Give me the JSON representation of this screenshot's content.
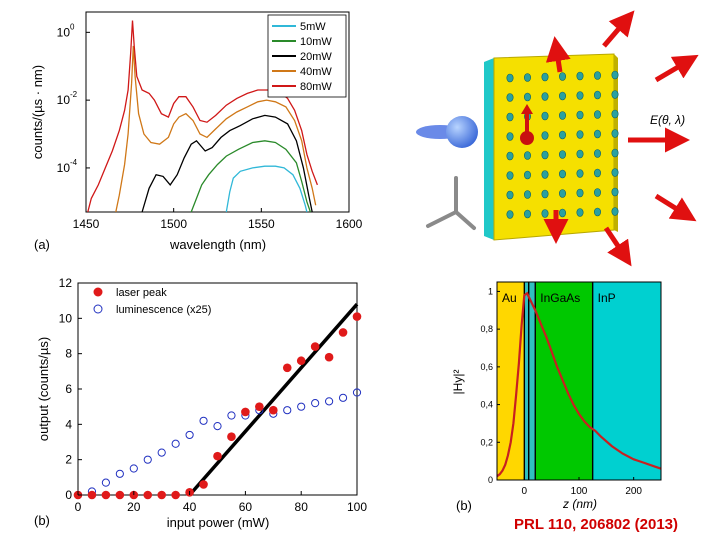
{
  "citation": "PRL 110, 206802 (2013)",
  "colors": {
    "accent_red": "#d00000",
    "au": "#ffd700",
    "ingaas": "#00c800",
    "inp": "#00d0d0",
    "slab": "#f5e000"
  },
  "panel_a": {
    "label": "(a)",
    "chart_data": {
      "type": "line",
      "xlabel": "wavelength (nm)",
      "ylabel": "counts/(µs · nm)",
      "xlim": [
        1450,
        1600
      ],
      "ylim_log10": [
        -5.3,
        0.6
      ],
      "xticks": [
        "1450",
        "1500",
        "1550",
        "1600"
      ],
      "yticks": [
        {
          "exp": 0,
          "label": "10"
        },
        {
          "exp": -2,
          "label": "10"
        },
        {
          "exp": -4,
          "label": "10"
        }
      ],
      "ytick_exponents": [
        "0",
        "-2",
        "-4"
      ],
      "legend": [
        {
          "name": "5mW",
          "color": "#30b8d8"
        },
        {
          "name": "10mW",
          "color": "#2a8a2a"
        },
        {
          "name": "20mW",
          "color": "#000000"
        },
        {
          "name": "40mW",
          "color": "#d07818"
        },
        {
          "name": "80mW",
          "color": "#d01818"
        }
      ],
      "series": [
        {
          "name": "5mW",
          "points": [
            [
              1530,
              -5.3
            ],
            [
              1532,
              -4.7
            ],
            [
              1534,
              -4.3
            ],
            [
              1538,
              -4.1
            ],
            [
              1545,
              -4.0
            ],
            [
              1552,
              -3.95
            ],
            [
              1558,
              -3.95
            ],
            [
              1563,
              -4.0
            ],
            [
              1568,
              -4.2
            ],
            [
              1572,
              -4.6
            ],
            [
              1575,
              -5.1
            ],
            [
              1576,
              -5.3
            ]
          ]
        },
        {
          "name": "10mW",
          "points": [
            [
              1510,
              -5.3
            ],
            [
              1513,
              -4.9
            ],
            [
              1516,
              -4.5
            ],
            [
              1520,
              -4.2
            ],
            [
              1525,
              -3.9
            ],
            [
              1530,
              -3.65
            ],
            [
              1537,
              -3.45
            ],
            [
              1545,
              -3.25
            ],
            [
              1552,
              -3.2
            ],
            [
              1558,
              -3.25
            ],
            [
              1564,
              -3.45
            ],
            [
              1570,
              -3.85
            ],
            [
              1573,
              -4.4
            ],
            [
              1576,
              -5.0
            ],
            [
              1578,
              -5.3
            ]
          ]
        },
        {
          "name": "20mW",
          "points": [
            [
              1482,
              -5.3
            ],
            [
              1486,
              -4.6
            ],
            [
              1490,
              -4.2
            ],
            [
              1494,
              -4.25
            ],
            [
              1498,
              -4.5
            ],
            [
              1502,
              -4.2
            ],
            [
              1506,
              -3.7
            ],
            [
              1510,
              -3.3
            ],
            [
              1513,
              -3.2
            ],
            [
              1518,
              -3.5
            ],
            [
              1522,
              -3.4
            ],
            [
              1527,
              -3.1
            ],
            [
              1532,
              -2.9
            ],
            [
              1538,
              -2.75
            ],
            [
              1545,
              -2.55
            ],
            [
              1552,
              -2.45
            ],
            [
              1558,
              -2.5
            ],
            [
              1565,
              -2.7
            ],
            [
              1570,
              -3.2
            ],
            [
              1574,
              -4.0
            ],
            [
              1577,
              -4.8
            ],
            [
              1579,
              -5.3
            ]
          ]
        },
        {
          "name": "40mW",
          "points": [
            [
              1467,
              -5.3
            ],
            [
              1469,
              -4.8
            ],
            [
              1472,
              -3.9
            ],
            [
              1474,
              -3.0
            ],
            [
              1476,
              -1.5
            ],
            [
              1477,
              -0.4
            ],
            [
              1478,
              -1.3
            ],
            [
              1480,
              -2.4
            ],
            [
              1483,
              -3.0
            ],
            [
              1487,
              -3.25
            ],
            [
              1492,
              -3.3
            ],
            [
              1497,
              -3.1
            ],
            [
              1500,
              -2.7
            ],
            [
              1503,
              -2.5
            ],
            [
              1507,
              -2.4
            ],
            [
              1511,
              -2.6
            ],
            [
              1515,
              -3.0
            ],
            [
              1519,
              -3.1
            ],
            [
              1524,
              -2.85
            ],
            [
              1530,
              -2.55
            ],
            [
              1536,
              -2.35
            ],
            [
              1542,
              -2.2
            ],
            [
              1548,
              -2.05
            ],
            [
              1553,
              -2.0
            ],
            [
              1558,
              -2.05
            ],
            [
              1564,
              -2.2
            ],
            [
              1569,
              -2.6
            ],
            [
              1573,
              -3.2
            ],
            [
              1576,
              -4.0
            ],
            [
              1579,
              -4.6
            ],
            [
              1581,
              -5.1
            ]
          ]
        },
        {
          "name": "80mW",
          "points": [
            [
              1451,
              -5.3
            ],
            [
              1453,
              -4.9
            ],
            [
              1457,
              -4.5
            ],
            [
              1461,
              -4.0
            ],
            [
              1465,
              -3.5
            ],
            [
              1469,
              -2.9
            ],
            [
              1472,
              -2.3
            ],
            [
              1474,
              -1.7
            ],
            [
              1475.5,
              -0.6
            ],
            [
              1476.5,
              0.35
            ],
            [
              1477.5,
              -0.4
            ],
            [
              1479,
              -1.3
            ],
            [
              1482,
              -1.7
            ],
            [
              1486,
              -1.8
            ],
            [
              1489,
              -2.0
            ],
            [
              1493,
              -2.4
            ],
            [
              1497,
              -2.5
            ],
            [
              1500,
              -2.1
            ],
            [
              1503,
              -1.9
            ],
            [
              1507,
              -1.9
            ],
            [
              1511,
              -2.2
            ],
            [
              1515,
              -2.6
            ],
            [
              1519,
              -2.65
            ],
            [
              1524,
              -2.45
            ],
            [
              1530,
              -2.15
            ],
            [
              1536,
              -1.95
            ],
            [
              1542,
              -1.8
            ],
            [
              1548,
              -1.7
            ],
            [
              1554,
              -1.7
            ],
            [
              1560,
              -1.75
            ],
            [
              1565,
              -1.95
            ],
            [
              1569,
              -2.3
            ],
            [
              1573,
              -2.9
            ],
            [
              1576,
              -3.6
            ],
            [
              1579,
              -4.1
            ],
            [
              1582,
              -4.5
            ]
          ]
        }
      ]
    }
  },
  "panel_b": {
    "label": "(b)",
    "chart_data": {
      "type": "scatter",
      "xlabel": "input power (mW)",
      "ylabel": "output (counts/µs)",
      "xlim": [
        0,
        100
      ],
      "ylim": [
        0,
        12
      ],
      "xticks": [
        "0",
        "20",
        "40",
        "60",
        "80",
        "100"
      ],
      "yticks": [
        "0",
        "2",
        "4",
        "6",
        "8",
        "10",
        "12"
      ],
      "legend": [
        {
          "name": "laser peak",
          "style": "filled-red-dot"
        },
        {
          "name": "luminescence (x25)",
          "style": "open-blue-circle"
        }
      ],
      "series": [
        {
          "name": "laser peak",
          "x": [
            0,
            5,
            10,
            15,
            20,
            25,
            30,
            35,
            40,
            45,
            50,
            55,
            60,
            65,
            70,
            75,
            80,
            85,
            90,
            95,
            100
          ],
          "y": [
            0,
            0,
            0,
            0,
            0,
            0,
            0,
            0,
            0.15,
            0.6,
            2.2,
            3.3,
            4.7,
            5.0,
            4.8,
            7.2,
            7.6,
            8.4,
            7.8,
            9.2,
            10.1
          ]
        },
        {
          "name": "luminescence (x25)",
          "x": [
            0,
            5,
            10,
            15,
            20,
            25,
            30,
            35,
            40,
            45,
            50,
            55,
            60,
            65,
            70,
            75,
            80,
            85,
            90,
            95,
            100
          ],
          "y": [
            0,
            0.2,
            0.7,
            1.2,
            1.5,
            2.0,
            2.4,
            2.9,
            3.4,
            4.2,
            3.9,
            4.5,
            4.5,
            4.8,
            4.6,
            4.8,
            5.0,
            5.2,
            5.3,
            5.5,
            5.8
          ]
        },
        {
          "name": "threshold fit",
          "type": "line",
          "x": [
            40,
            100
          ],
          "y": [
            0,
            10.8
          ]
        }
      ]
    }
  },
  "panel_c": {
    "equation_label": "E(θ, λ)"
  },
  "panel_d": {
    "label": "(b)",
    "chart_data": {
      "type": "line",
      "xlabel": "z (nm)",
      "ylabel": "|Hy|²",
      "xlim": [
        -50,
        250
      ],
      "ylim": [
        0,
        1.05
      ],
      "xticks": [
        "0",
        "100",
        "200"
      ],
      "yticks": [
        "0",
        "0,2",
        "0,4",
        "0,6",
        "0,8",
        "1"
      ],
      "regions": [
        {
          "name": "Au",
          "from": -50,
          "to": 0
        },
        {
          "name": "InGaAs",
          "from": 20,
          "to": 125
        },
        {
          "name": "InP",
          "from": 125,
          "to": 250
        }
      ],
      "series": [
        {
          "name": "|Hy|^2",
          "x": [
            -50,
            -45,
            -40,
            -35,
            -30,
            -25,
            -20,
            -15,
            -10,
            -5,
            0,
            5,
            10,
            20,
            30,
            40,
            50,
            60,
            70,
            80,
            90,
            100,
            110,
            120,
            130,
            140,
            160,
            180,
            200,
            220,
            240,
            250
          ],
          "y": [
            0.02,
            0.03,
            0.05,
            0.08,
            0.13,
            0.2,
            0.3,
            0.45,
            0.62,
            0.82,
            0.98,
            0.99,
            0.96,
            0.9,
            0.83,
            0.76,
            0.68,
            0.6,
            0.53,
            0.46,
            0.4,
            0.35,
            0.31,
            0.28,
            0.26,
            0.23,
            0.18,
            0.14,
            0.11,
            0.09,
            0.07,
            0.06
          ]
        }
      ]
    }
  }
}
